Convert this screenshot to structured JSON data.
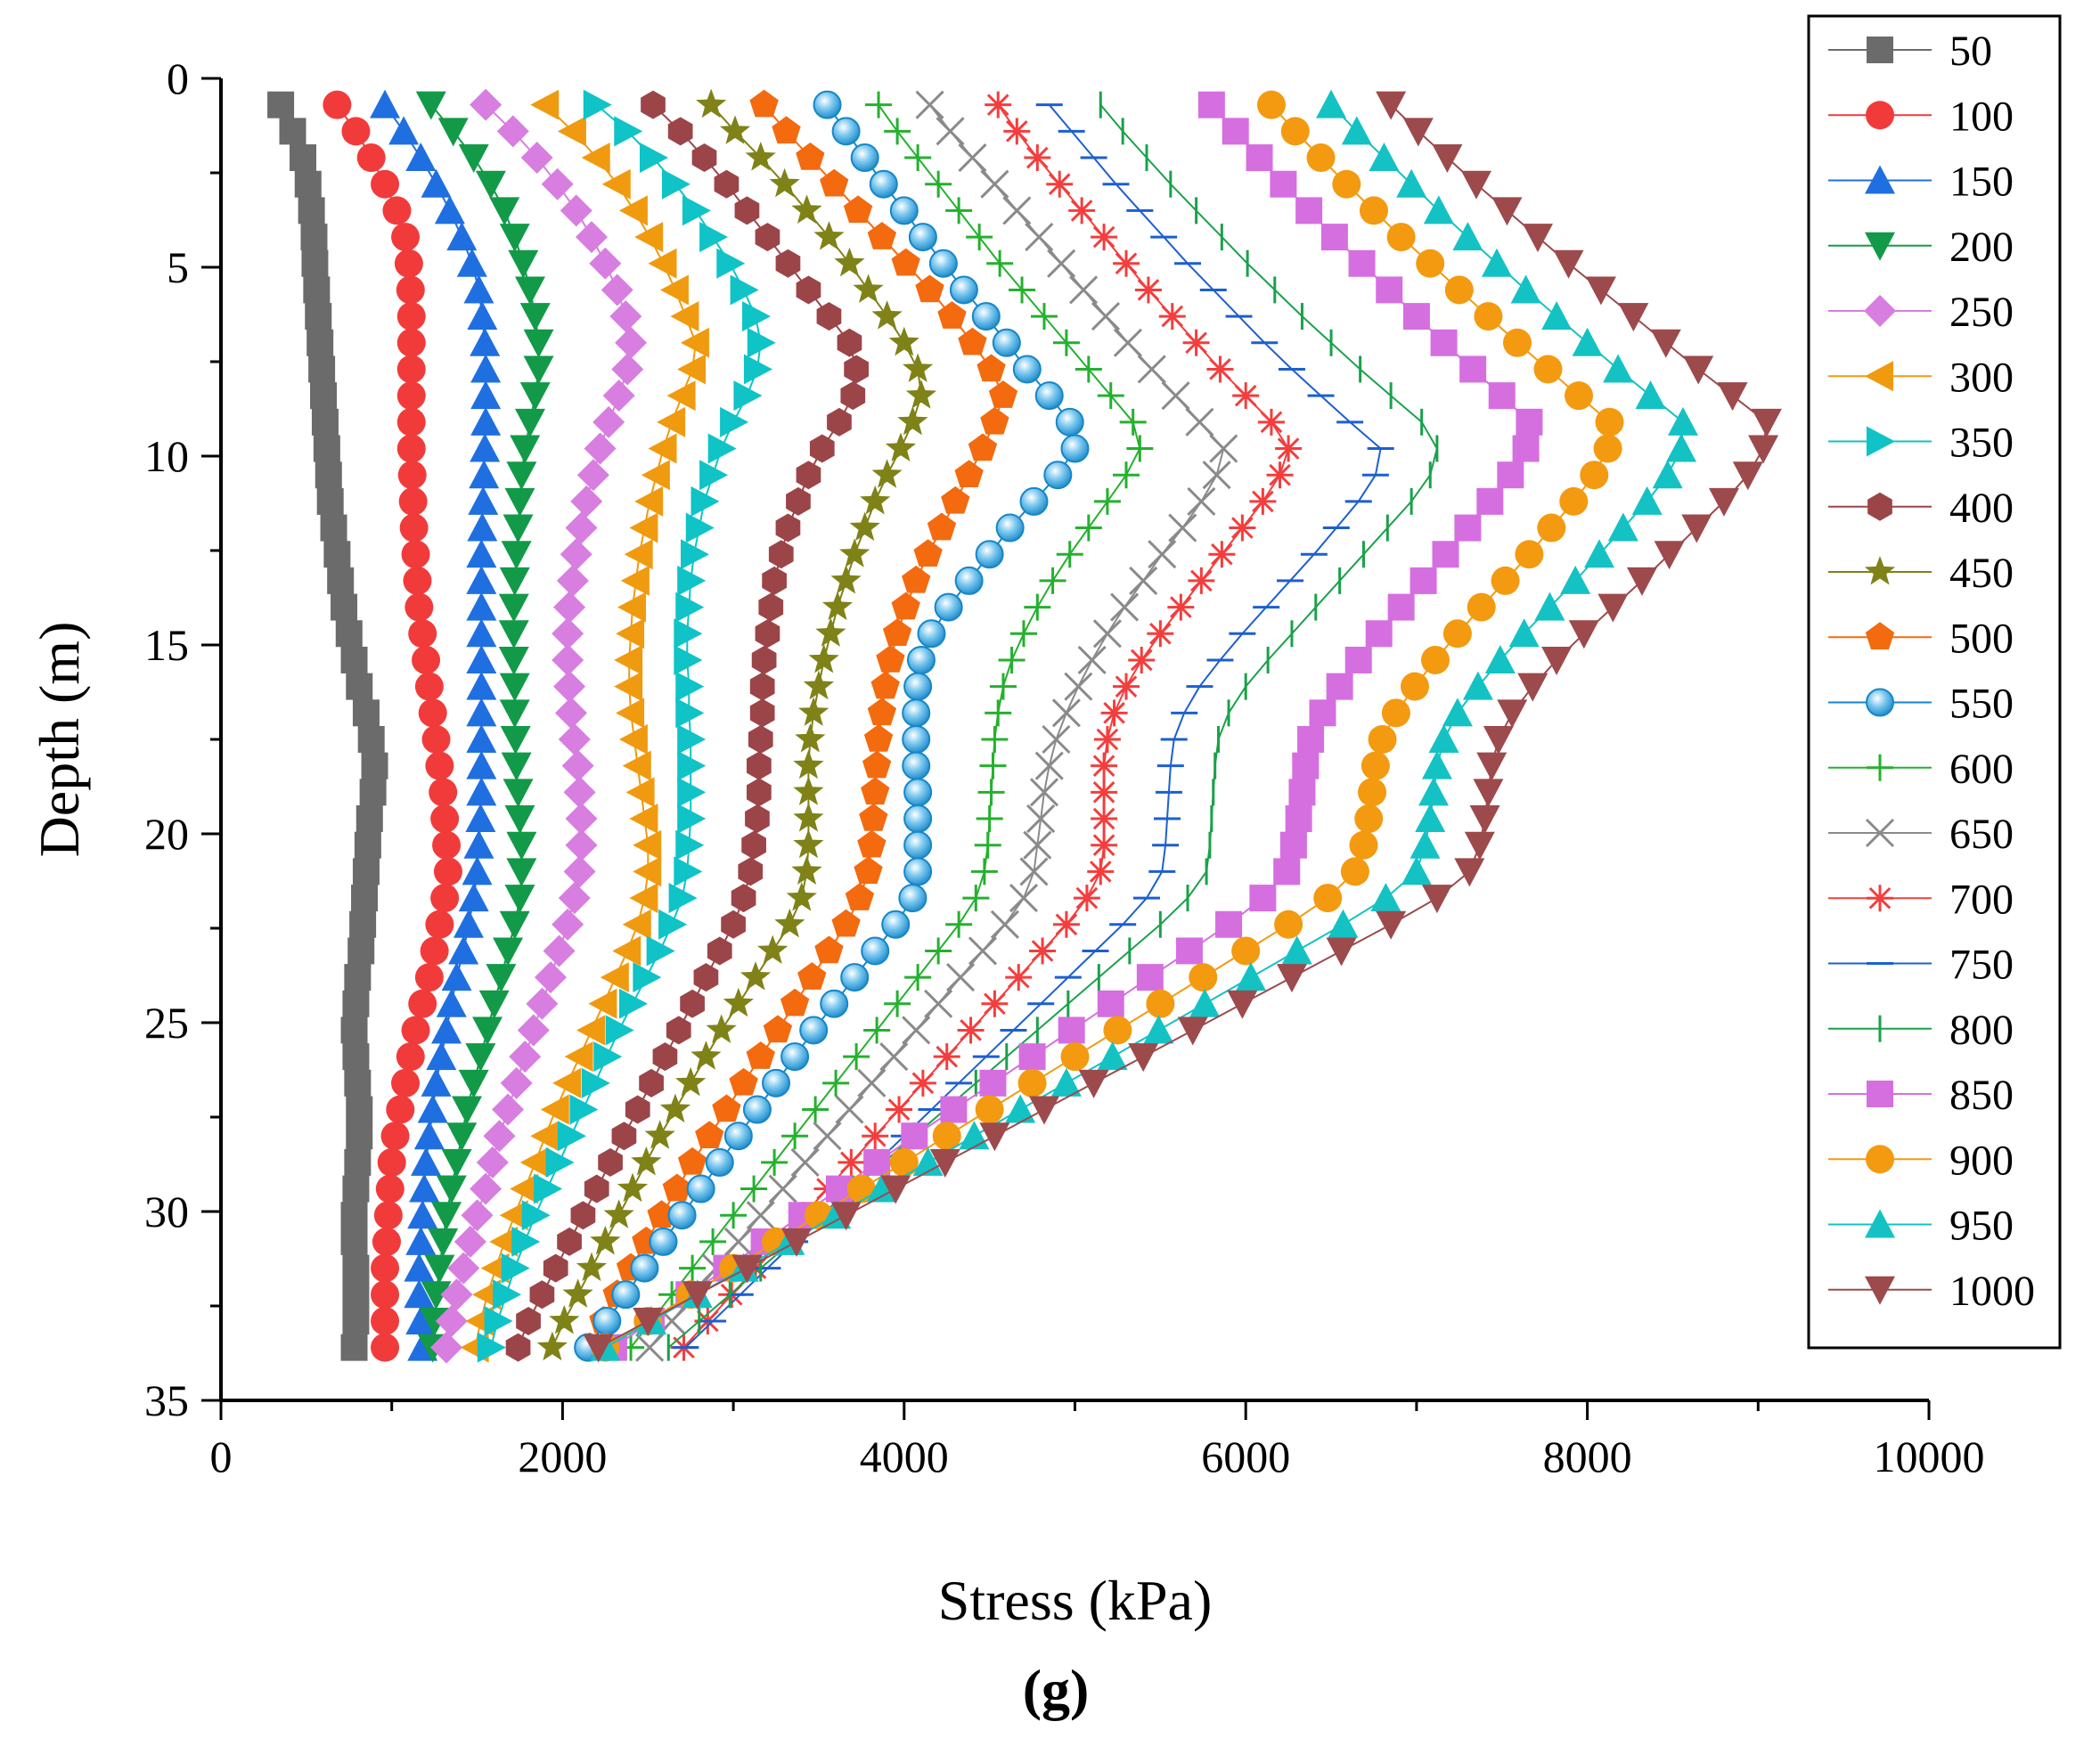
{
  "chart_data": {
    "type": "line",
    "title": "",
    "panel_label": "(g)",
    "xlabel": "Stress (kPa)",
    "ylabel": "Depth (m)",
    "xlim": [
      0,
      10000
    ],
    "ylim": [
      0,
      35
    ],
    "y_inverted": true,
    "x_ticks": [
      "0",
      "2000",
      "4000",
      "6000",
      "8000",
      "10000"
    ],
    "y_ticks": [
      "0",
      "5",
      "10",
      "15",
      "20",
      "25",
      "30",
      "35"
    ],
    "grid": false,
    "legend_position": "right",
    "depths": [
      0.7,
      1.4,
      2.1,
      2.8,
      3.5,
      4.2,
      4.9,
      5.6,
      6.3,
      7.0,
      7.7,
      8.4,
      9.1,
      9.8,
      10.5,
      11.2,
      11.9,
      12.6,
      13.3,
      14.0,
      14.7,
      15.4,
      16.1,
      16.8,
      17.5,
      18.2,
      18.9,
      19.6,
      20.3,
      21.0,
      21.7,
      22.4,
      23.1,
      23.8,
      24.5,
      25.2,
      25.9,
      26.6,
      27.3,
      28.0,
      28.7,
      29.4,
      30.1,
      30.8,
      31.5,
      32.2,
      32.9,
      33.6
    ],
    "series": [
      {
        "name": "50",
        "color": "#6b6b6b",
        "marker": "square",
        "values": [
          350,
          420,
          480,
          510,
          530,
          545,
          550,
          560,
          570,
          580,
          590,
          600,
          610,
          620,
          630,
          640,
          660,
          680,
          700,
          720,
          750,
          780,
          810,
          850,
          880,
          900,
          890,
          870,
          860,
          850,
          840,
          830,
          820,
          800,
          790,
          780,
          790,
          800,
          810,
          810,
          800,
          790,
          780,
          780,
          790,
          790,
          790,
          780
        ]
      },
      {
        "name": "100",
        "color": "#f13b3b",
        "marker": "circle",
        "values": [
          680,
          790,
          880,
          960,
          1030,
          1080,
          1100,
          1110,
          1115,
          1115,
          1115,
          1115,
          1115,
          1115,
          1120,
          1125,
          1130,
          1140,
          1150,
          1160,
          1180,
          1200,
          1220,
          1240,
          1260,
          1280,
          1300,
          1310,
          1320,
          1330,
          1310,
          1280,
          1250,
          1220,
          1180,
          1140,
          1110,
          1080,
          1050,
          1020,
          1000,
          990,
          980,
          970,
          960,
          960,
          960,
          960
        ]
      },
      {
        "name": "150",
        "color": "#1f6fe0",
        "marker": "triangle-up",
        "values": [
          960,
          1070,
          1170,
          1260,
          1340,
          1410,
          1470,
          1510,
          1530,
          1545,
          1550,
          1550,
          1550,
          1545,
          1540,
          1535,
          1530,
          1525,
          1525,
          1525,
          1525,
          1525,
          1525,
          1525,
          1525,
          1525,
          1525,
          1520,
          1510,
          1500,
          1480,
          1450,
          1420,
          1380,
          1350,
          1320,
          1290,
          1260,
          1240,
          1220,
          1200,
          1190,
          1180,
          1170,
          1160,
          1160,
          1170,
          1180
        ]
      },
      {
        "name": "200",
        "color": "#129a48",
        "marker": "triangle-down",
        "values": [
          1230,
          1360,
          1480,
          1580,
          1660,
          1720,
          1770,
          1810,
          1840,
          1860,
          1860,
          1840,
          1810,
          1780,
          1760,
          1750,
          1740,
          1730,
          1720,
          1715,
          1715,
          1715,
          1720,
          1720,
          1725,
          1730,
          1740,
          1750,
          1760,
          1760,
          1750,
          1720,
          1680,
          1640,
          1600,
          1560,
          1520,
          1480,
          1440,
          1410,
          1380,
          1350,
          1320,
          1300,
          1280,
          1260,
          1250,
          1240
        ]
      },
      {
        "name": "250",
        "color": "#d77ee0",
        "marker": "diamond",
        "values": [
          1550,
          1710,
          1850,
          1970,
          2080,
          2170,
          2250,
          2320,
          2370,
          2400,
          2380,
          2330,
          2270,
          2220,
          2180,
          2140,
          2110,
          2080,
          2060,
          2040,
          2030,
          2030,
          2040,
          2050,
          2070,
          2090,
          2100,
          2110,
          2110,
          2100,
          2070,
          2030,
          1980,
          1930,
          1880,
          1830,
          1780,
          1730,
          1680,
          1630,
          1590,
          1550,
          1500,
          1460,
          1420,
          1380,
          1350,
          1320
        ]
      },
      {
        "name": "300",
        "color": "#f09a10",
        "marker": "triangle-left",
        "values": [
          1900,
          2060,
          2200,
          2320,
          2420,
          2510,
          2590,
          2660,
          2720,
          2780,
          2760,
          2700,
          2640,
          2590,
          2550,
          2510,
          2480,
          2450,
          2430,
          2410,
          2400,
          2390,
          2390,
          2400,
          2420,
          2440,
          2460,
          2480,
          2500,
          2500,
          2480,
          2440,
          2380,
          2310,
          2240,
          2170,
          2100,
          2030,
          1960,
          1900,
          1840,
          1780,
          1720,
          1660,
          1610,
          1560,
          1520,
          1490
        ]
      },
      {
        "name": "350",
        "color": "#0fc3c7",
        "marker": "triangle-right",
        "values": [
          2200,
          2380,
          2530,
          2660,
          2780,
          2880,
          2980,
          3060,
          3130,
          3160,
          3140,
          3080,
          3000,
          2930,
          2880,
          2830,
          2800,
          2770,
          2750,
          2740,
          2730,
          2730,
          2740,
          2740,
          2750,
          2750,
          2750,
          2750,
          2740,
          2730,
          2700,
          2640,
          2570,
          2490,
          2410,
          2330,
          2260,
          2190,
          2120,
          2050,
          1980,
          1910,
          1840,
          1780,
          1720,
          1670,
          1620,
          1580
        ]
      },
      {
        "name": "400",
        "color": "#9b4549",
        "marker": "hexagon",
        "values": [
          2530,
          2690,
          2830,
          2960,
          3080,
          3200,
          3320,
          3440,
          3560,
          3680,
          3720,
          3700,
          3620,
          3520,
          3440,
          3380,
          3320,
          3280,
          3240,
          3220,
          3200,
          3180,
          3170,
          3170,
          3160,
          3150,
          3150,
          3140,
          3120,
          3100,
          3060,
          3000,
          2920,
          2840,
          2760,
          2680,
          2600,
          2520,
          2440,
          2360,
          2280,
          2200,
          2120,
          2040,
          1960,
          1880,
          1800,
          1740
        ]
      },
      {
        "name": "450",
        "color": "#7f8217",
        "marker": "star",
        "values": [
          2870,
          3010,
          3160,
          3300,
          3430,
          3560,
          3680,
          3790,
          3900,
          4000,
          4080,
          4100,
          4050,
          3980,
          3900,
          3830,
          3770,
          3710,
          3660,
          3610,
          3570,
          3530,
          3500,
          3470,
          3450,
          3440,
          3440,
          3440,
          3440,
          3430,
          3400,
          3330,
          3230,
          3130,
          3030,
          2930,
          2840,
          2750,
          2660,
          2570,
          2490,
          2410,
          2330,
          2250,
          2170,
          2090,
          2010,
          1940
        ]
      },
      {
        "name": "500",
        "color": "#f36a0f",
        "marker": "pentagon",
        "values": [
          3180,
          3310,
          3450,
          3590,
          3730,
          3870,
          4010,
          4150,
          4280,
          4400,
          4510,
          4580,
          4530,
          4460,
          4380,
          4300,
          4220,
          4140,
          4070,
          4010,
          3960,
          3920,
          3890,
          3870,
          3850,
          3840,
          3830,
          3820,
          3810,
          3790,
          3740,
          3660,
          3560,
          3460,
          3360,
          3260,
          3160,
          3060,
          2960,
          2860,
          2760,
          2670,
          2580,
          2490,
          2400,
          2320,
          2240,
          2160
        ]
      },
      {
        "name": "550",
        "color": "#1686c8",
        "marker": "sphere",
        "values": [
          3550,
          3660,
          3770,
          3880,
          4000,
          4110,
          4230,
          4350,
          4480,
          4600,
          4720,
          4850,
          4970,
          5000,
          4900,
          4760,
          4620,
          4500,
          4380,
          4260,
          4160,
          4100,
          4080,
          4070,
          4070,
          4070,
          4080,
          4080,
          4080,
          4080,
          4050,
          3950,
          3830,
          3710,
          3590,
          3470,
          3360,
          3250,
          3140,
          3030,
          2920,
          2810,
          2700,
          2590,
          2480,
          2370,
          2260,
          2150
        ]
      },
      {
        "name": "600",
        "color": "#25b02f",
        "marker": "plus",
        "values": [
          3850,
          3960,
          4080,
          4200,
          4320,
          4440,
          4560,
          4690,
          4820,
          4950,
          5080,
          5210,
          5340,
          5380,
          5300,
          5190,
          5080,
          4970,
          4870,
          4780,
          4700,
          4630,
          4580,
          4550,
          4530,
          4520,
          4510,
          4500,
          4490,
          4470,
          4420,
          4320,
          4200,
          4080,
          3960,
          3840,
          3720,
          3600,
          3480,
          3360,
          3240,
          3120,
          3000,
          2880,
          2760,
          2640,
          2520,
          2400
        ]
      },
      {
        "name": "650",
        "color": "#8a8a8a",
        "marker": "x",
        "values": [
          4150,
          4270,
          4400,
          4530,
          4660,
          4790,
          4920,
          5050,
          5180,
          5310,
          5450,
          5590,
          5730,
          5870,
          5830,
          5740,
          5630,
          5510,
          5400,
          5290,
          5190,
          5100,
          5020,
          4950,
          4890,
          4850,
          4820,
          4800,
          4780,
          4760,
          4700,
          4590,
          4460,
          4330,
          4200,
          4070,
          3940,
          3810,
          3680,
          3550,
          3420,
          3290,
          3160,
          3030,
          2900,
          2770,
          2640,
          2510
        ]
      },
      {
        "name": "700",
        "color": "#f43d3d",
        "marker": "asterisk",
        "values": [
          4550,
          4660,
          4780,
          4910,
          5040,
          5170,
          5300,
          5430,
          5570,
          5710,
          5850,
          6000,
          6150,
          6250,
          6200,
          6100,
          5980,
          5860,
          5740,
          5620,
          5500,
          5390,
          5300,
          5230,
          5190,
          5170,
          5170,
          5170,
          5170,
          5150,
          5070,
          4950,
          4810,
          4670,
          4530,
          4390,
          4250,
          4110,
          3970,
          3830,
          3690,
          3550,
          3410,
          3270,
          3130,
          2990,
          2850,
          2710
        ]
      },
      {
        "name": "750",
        "color": "#1c5fd0",
        "marker": "hline",
        "values": [
          4850,
          4980,
          5110,
          5240,
          5380,
          5520,
          5660,
          5810,
          5960,
          6110,
          6270,
          6440,
          6610,
          6790,
          6760,
          6660,
          6530,
          6400,
          6260,
          6120,
          5980,
          5850,
          5730,
          5640,
          5580,
          5560,
          5550,
          5540,
          5530,
          5510,
          5420,
          5280,
          5120,
          4960,
          4800,
          4640,
          4480,
          4320,
          4160,
          4000,
          3840,
          3680,
          3520,
          3360,
          3200,
          3040,
          2880,
          2720
        ]
      },
      {
        "name": "800",
        "color": "#1aa14a",
        "marker": "vline",
        "values": [
          5150,
          5280,
          5420,
          5560,
          5710,
          5860,
          6010,
          6170,
          6330,
          6500,
          6670,
          6850,
          7030,
          7120,
          7080,
          6970,
          6830,
          6690,
          6550,
          6410,
          6270,
          6130,
          6000,
          5900,
          5840,
          5820,
          5810,
          5800,
          5790,
          5770,
          5660,
          5500,
          5320,
          5140,
          4960,
          4780,
          4600,
          4420,
          4240,
          4060,
          3880,
          3700,
          3520,
          3340,
          3160,
          2980,
          2800,
          2620
        ]
      },
      {
        "name": "850",
        "color": "#d56fe0",
        "marker": "square",
        "values": [
          5800,
          5940,
          6080,
          6220,
          6370,
          6520,
          6680,
          6840,
          7000,
          7160,
          7330,
          7500,
          7660,
          7640,
          7550,
          7430,
          7300,
          7170,
          7040,
          6910,
          6780,
          6660,
          6550,
          6450,
          6380,
          6350,
          6330,
          6310,
          6280,
          6240,
          6100,
          5900,
          5670,
          5440,
          5210,
          4980,
          4750,
          4520,
          4290,
          4060,
          3840,
          3620,
          3400,
          3180,
          2960,
          2740,
          2520,
          2300
        ]
      },
      {
        "name": "900",
        "color": "#f39a10",
        "marker": "circle",
        "values": [
          6150,
          6290,
          6440,
          6590,
          6750,
          6910,
          7080,
          7250,
          7420,
          7590,
          7770,
          7950,
          8130,
          8120,
          8040,
          7920,
          7790,
          7660,
          7520,
          7380,
          7240,
          7110,
          6990,
          6880,
          6800,
          6760,
          6740,
          6720,
          6690,
          6640,
          6480,
          6250,
          6000,
          5750,
          5500,
          5250,
          5000,
          4750,
          4500,
          4250,
          4000,
          3750,
          3500,
          3250,
          3000,
          2750,
          2500,
          2250
        ]
      },
      {
        "name": "950",
        "color": "#14c2c4",
        "marker": "triangle-up",
        "values": [
          6500,
          6650,
          6810,
          6970,
          7130,
          7300,
          7470,
          7640,
          7820,
          8000,
          8180,
          8370,
          8560,
          8550,
          8470,
          8350,
          8210,
          8070,
          7930,
          7780,
          7630,
          7490,
          7360,
          7240,
          7160,
          7120,
          7100,
          7080,
          7050,
          7000,
          6820,
          6570,
          6300,
          6030,
          5760,
          5490,
          5220,
          4950,
          4680,
          4410,
          4140,
          3870,
          3600,
          3330,
          3060,
          2790,
          2520,
          2250
        ]
      },
      {
        "name": "1000",
        "color": "#9c4a4c",
        "marker": "triangle-down",
        "values": [
          6850,
          7010,
          7180,
          7350,
          7530,
          7710,
          7890,
          8080,
          8270,
          8460,
          8650,
          8850,
          9050,
          9030,
          8940,
          8800,
          8640,
          8480,
          8320,
          8150,
          7980,
          7820,
          7680,
          7560,
          7480,
          7440,
          7420,
          7400,
          7370,
          7310,
          7120,
          6850,
          6560,
          6270,
          5980,
          5690,
          5400,
          5110,
          4820,
          4530,
          4240,
          3950,
          3660,
          3370,
          3080,
          2790,
          2500,
          2210
        ]
      }
    ]
  }
}
